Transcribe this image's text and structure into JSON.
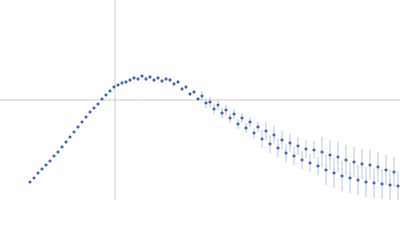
{
  "chart_data": {
    "type": "scatter",
    "x": [
      -85,
      -81,
      -77,
      -73,
      -69,
      -65,
      -61,
      -57,
      -53,
      -49,
      -45,
      -41,
      -37,
      -33,
      -29,
      -25,
      -21,
      -17,
      -13,
      -9,
      -5,
      -1,
      3,
      7,
      11,
      15,
      19,
      23,
      27,
      31,
      35,
      39,
      43,
      47,
      51,
      55,
      59,
      63,
      67,
      71,
      75,
      79,
      83,
      87,
      91,
      95,
      99,
      103,
      107,
      111,
      115,
      119,
      123,
      127,
      131,
      135,
      139,
      143,
      147,
      151,
      155,
      159,
      163,
      167,
      171,
      175,
      179,
      183,
      187,
      191,
      195,
      199,
      203,
      207,
      211,
      215,
      219,
      223,
      227,
      231,
      235,
      239,
      243,
      247,
      251,
      255,
      259,
      263,
      267,
      271,
      275,
      279,
      283
    ],
    "values": [
      -82,
      -78,
      -73,
      -69,
      -65,
      -61,
      -56,
      -52,
      -47,
      -42,
      -37,
      -32,
      -27,
      -22,
      -17,
      -12,
      -8,
      -4,
      1,
      5,
      9,
      13,
      15,
      17,
      18,
      20,
      22,
      21,
      24,
      21,
      23,
      20,
      22,
      19,
      21,
      20,
      16,
      18,
      11,
      13,
      6,
      8,
      1,
      4,
      -3,
      -2,
      -9,
      -5,
      -13,
      -10,
      -18,
      -14,
      -24,
      -18,
      -28,
      -22,
      -33,
      -27,
      -39,
      -31,
      -44,
      -35,
      -48,
      -40,
      -53,
      -43,
      -56,
      -46,
      -60,
      -49,
      -63,
      -50,
      -66,
      -52,
      -70,
      -55,
      -73,
      -57,
      -76,
      -60,
      -78,
      -62,
      -80,
      -64,
      -82,
      -65,
      -83,
      -67,
      -84,
      -70,
      -85,
      -72,
      -86
    ],
    "errors": [
      1,
      1,
      1,
      1,
      1,
      1,
      1,
      1,
      1,
      1,
      1,
      1,
      1,
      1,
      1,
      1,
      1,
      1,
      1,
      1,
      1,
      1,
      1,
      2,
      2,
      2,
      2,
      2,
      2,
      2,
      2,
      2,
      2,
      2,
      2,
      2,
      2,
      2,
      2,
      2,
      2,
      2,
      2,
      5,
      5,
      5,
      5,
      5,
      5,
      5,
      5,
      5,
      5,
      5,
      5,
      5,
      5,
      5,
      9,
      9,
      9,
      9,
      9,
      9,
      9,
      9,
      9,
      9,
      9,
      9,
      9,
      9,
      9,
      15,
      15,
      15,
      15,
      15,
      15,
      15,
      15,
      15,
      15,
      15,
      15,
      15,
      15,
      15,
      15,
      15,
      15,
      15,
      15
    ],
    "color": "#3b63b8",
    "error_color": "#a9badf",
    "xlim": [
      -115,
      285
    ],
    "ylim": [
      -100,
      100
    ],
    "zero_lines": true
  }
}
